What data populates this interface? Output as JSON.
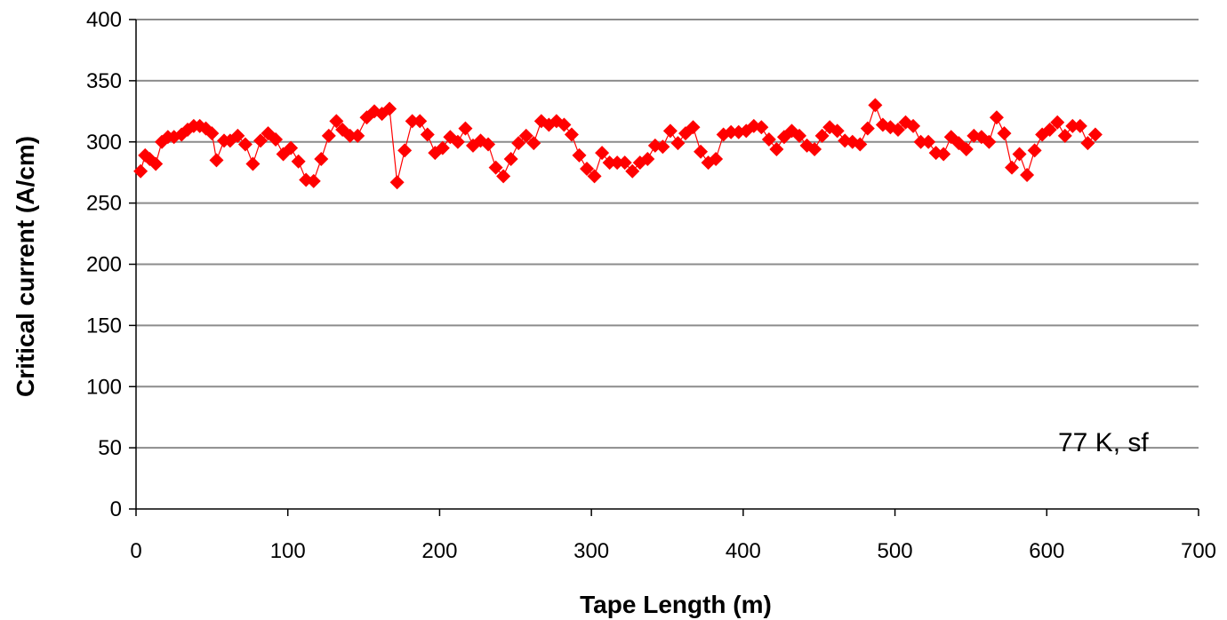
{
  "chart_data": {
    "type": "scatter",
    "title": "",
    "xlabel": "Tape Length (m)",
    "ylabel": "Critical current (A/cm)",
    "xlim": [
      0,
      700
    ],
    "ylim": [
      0,
      400
    ],
    "xticks": [
      0,
      100,
      200,
      300,
      400,
      500,
      600,
      700
    ],
    "yticks": [
      0,
      50,
      100,
      150,
      200,
      250,
      300,
      350,
      400
    ],
    "grid": "horizontal",
    "legend": "none",
    "annotation": "77 K, sf",
    "marker": "diamond",
    "connected": true,
    "color": "#ff0000",
    "series": [
      {
        "x": [
          3,
          6,
          9,
          13,
          17,
          21,
          25,
          30,
          34,
          38,
          42,
          46,
          50,
          53,
          58,
          62,
          67,
          72,
          77,
          82,
          87,
          92,
          97,
          102,
          107,
          112,
          117,
          122,
          127,
          132,
          136,
          141,
          146,
          152,
          157,
          162,
          167,
          172,
          177,
          182,
          187,
          192,
          197,
          202,
          207,
          212,
          217,
          222,
          227,
          232,
          237,
          242,
          247,
          252,
          257,
          262,
          267,
          272,
          277,
          282,
          287,
          292,
          297,
          302,
          307,
          312,
          317,
          322,
          327,
          332,
          337,
          342,
          347,
          352,
          357,
          362,
          367,
          372,
          377,
          382,
          387,
          392,
          397,
          402,
          407,
          412,
          417,
          422,
          427,
          432,
          437,
          442,
          447,
          452,
          457,
          462,
          467,
          472,
          477,
          482,
          487,
          492,
          497,
          502,
          507,
          512,
          517,
          522,
          527,
          532,
          537,
          542,
          547,
          552,
          557,
          562,
          567,
          572,
          577,
          582,
          587,
          592,
          597,
          602,
          607,
          612,
          617,
          622,
          627,
          632
        ],
        "y": [
          276,
          289,
          286,
          282,
          300,
          304,
          304,
          306,
          310,
          313,
          313,
          311,
          307,
          285,
          301,
          301,
          305,
          298,
          282,
          301,
          307,
          302,
          290,
          295,
          284,
          269,
          268,
          286,
          305,
          317,
          310,
          305,
          305,
          320,
          325,
          323,
          327,
          267,
          293,
          317,
          317,
          306,
          291,
          295,
          304,
          300,
          311,
          297,
          301,
          298,
          279,
          272,
          286,
          299,
          305,
          299,
          317,
          314,
          317,
          314,
          306,
          289,
          278,
          272,
          291,
          283,
          283,
          283,
          276,
          283,
          286,
          297,
          296,
          309,
          299,
          307,
          312,
          292,
          283,
          286,
          306,
          308,
          308,
          309,
          313,
          312,
          302,
          294,
          304,
          309,
          305,
          297,
          294,
          305,
          312,
          309,
          301,
          300,
          298,
          311,
          330,
          314,
          312,
          310,
          316,
          313,
          300,
          300,
          291,
          290,
          304,
          299,
          294,
          305,
          304,
          300,
          320,
          307,
          279,
          290,
          273,
          293,
          306,
          310,
          316,
          305,
          313,
          313,
          299,
          306
        ]
      }
    ]
  }
}
